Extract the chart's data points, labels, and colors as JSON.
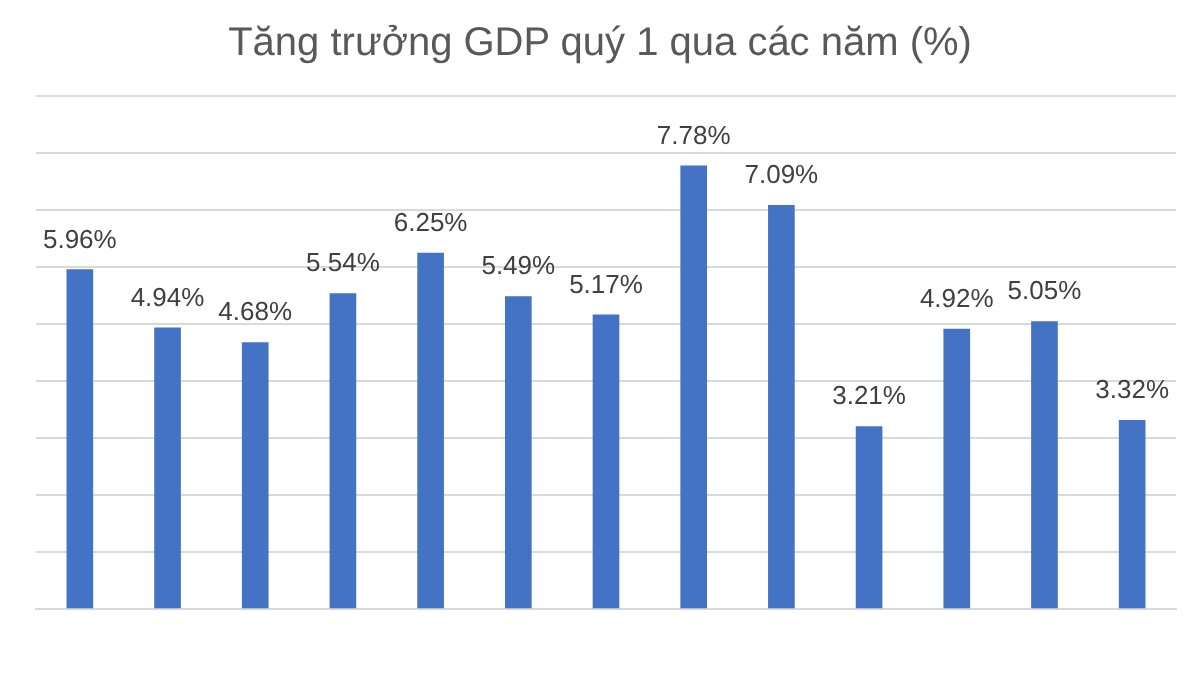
{
  "chart_data": {
    "type": "bar",
    "title": "Tăng trưởng GDP quý 1 qua các năm (%)",
    "categories": [
      null,
      null,
      null,
      null,
      null,
      null,
      null,
      null,
      null,
      null,
      null,
      null,
      null
    ],
    "values": [
      5.96,
      4.94,
      4.68,
      5.54,
      6.25,
      5.49,
      5.17,
      7.78,
      7.09,
      3.21,
      4.92,
      5.05,
      3.32
    ],
    "value_labels": [
      "5.96%",
      "4.94%",
      "4.68%",
      "5.54%",
      "6.25%",
      "5.49%",
      "5.17%",
      "7.78%",
      "7.09%",
      "3.21%",
      "4.92%",
      "5.05%",
      "3.32%"
    ],
    "color": "#4472c4",
    "ylim": [
      0,
      9
    ],
    "yticks": [
      {
        "value": 0,
        "label": null
      },
      {
        "value": 1,
        "label": null
      },
      {
        "value": 2,
        "label": null
      },
      {
        "value": 3,
        "label": null
      },
      {
        "value": 4,
        "label": null
      },
      {
        "value": 5,
        "label": null
      },
      {
        "value": 6,
        "label": null
      },
      {
        "value": 7,
        "label": null
      },
      {
        "value": 8,
        "label": null
      },
      {
        "value": 9,
        "label": null
      }
    ],
    "grid": "y"
  }
}
